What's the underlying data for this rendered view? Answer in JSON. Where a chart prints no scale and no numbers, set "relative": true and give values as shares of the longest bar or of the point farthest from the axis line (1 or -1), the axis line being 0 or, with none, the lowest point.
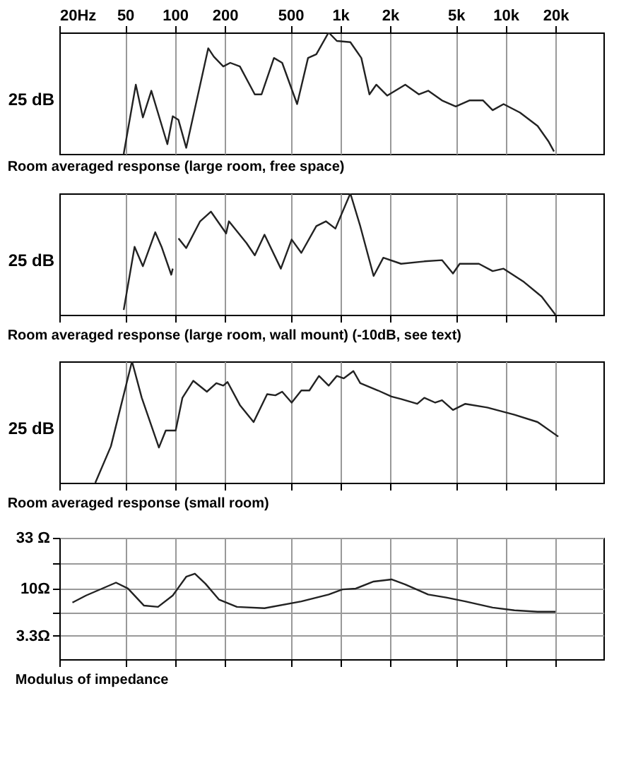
{
  "chart_data": [
    {
      "type": "line",
      "title": "Room averaged response (large room, free space)",
      "relative": true,
      "log": "x",
      "grid": "x",
      "annotations": [
        "25 dB"
      ],
      "xlim": [
        20,
        39000
      ],
      "xticks": [
        {
          "value": 20,
          "label": "20Hz"
        },
        50,
        100,
        200,
        500,
        {
          "value": 1000,
          "label": "1k"
        },
        {
          "value": 2000,
          "label": "2k"
        },
        {
          "value": 5000,
          "label": "5k"
        },
        {
          "value": 10000,
          "label": "10k"
        },
        {
          "value": 20000,
          "label": "20k"
        }
      ],
      "series": [
        {
          "color": "#222222",
          "x": [
            49,
            58,
            64,
            72,
            90,
            97,
            105,
            117,
            159,
            172,
            196,
            216,
            247,
            304,
            334,
            397,
            445,
            548,
            638,
            716,
            850,
            953,
            1150,
            1340,
            1500,
            1650,
            1920,
            2470,
            2990,
            3400,
            4120,
            4990,
            6030,
            7300,
            8340,
            9710,
            12200,
            15600,
            18200,
            19600
          ],
          "values": [
            0,
            0.57,
            0.3,
            0.52,
            0.08,
            0.31,
            0.28,
            0.05,
            0.87,
            0.8,
            0.72,
            0.75,
            0.72,
            0.49,
            0.49,
            0.79,
            0.75,
            0.41,
            0.79,
            0.82,
            1,
            0.93,
            0.92,
            0.79,
            0.49,
            0.57,
            0.48,
            0.57,
            0.49,
            0.52,
            0.44,
            0.39,
            0.44,
            0.44,
            0.36,
            0.41,
            0.34,
            0.23,
            0.1,
            0.02
          ]
        }
      ]
    },
    {
      "type": "line",
      "title": "Room averaged response (large room, wall mount) (-10dB, see text)",
      "relative": true,
      "log": "x",
      "grid": "x",
      "tick_labels": false,
      "annotations": [
        "25 dB"
      ],
      "xlim": [
        20,
        39000
      ],
      "xticks": [
        {
          "value": 20,
          "label": null
        },
        {
          "value": 50,
          "label": null
        },
        {
          "value": 100,
          "label": null
        },
        {
          "value": 200,
          "label": null
        },
        {
          "value": 500,
          "label": null
        },
        {
          "value": 1000,
          "label": null
        },
        {
          "value": 2000,
          "label": null
        },
        {
          "value": 5000,
          "label": null
        },
        {
          "value": 10000,
          "label": null
        },
        {
          "value": 20000,
          "label": null
        }
      ],
      "series": [
        {
          "color": "#222222",
          "x": [
            49,
            57,
            64,
            76,
            83,
            95,
            97,
            101,
            105,
            117,
            142,
            165,
            204,
            212,
            271,
            304,
            348,
            437,
            508,
            581,
            716,
            818,
            934,
            1150,
            1320,
            1590,
            1820,
            2330,
            3220,
            4120,
            4800,
            5270,
            6890,
            8340,
            9710,
            12900,
            16500,
            20000
          ],
          "values": [
            0.04,
            0.56,
            0.4,
            0.68,
            0.56,
            0.33,
            0.38,
            null,
            0.63,
            0.55,
            0.77,
            0.85,
            0.67,
            0.77,
            0.59,
            0.49,
            0.66,
            0.38,
            0.62,
            0.51,
            0.73,
            0.77,
            0.71,
            1,
            0.73,
            0.32,
            0.47,
            0.42,
            0.44,
            0.45,
            0.34,
            0.42,
            0.42,
            0.36,
            0.38,
            0.27,
            0.15,
            0
          ]
        }
      ]
    },
    {
      "type": "line",
      "title": "Room averaged response (small room)",
      "relative": true,
      "log": "x",
      "grid": "x",
      "tick_labels": false,
      "annotations": [
        "25 dB"
      ],
      "xlim": [
        20,
        39000
      ],
      "xticks": [
        {
          "value": 20,
          "label": null
        },
        {
          "value": 50,
          "label": null
        },
        {
          "value": 100,
          "label": null
        },
        {
          "value": 200,
          "label": null
        },
        {
          "value": 500,
          "label": null
        },
        {
          "value": 1000,
          "label": null
        },
        {
          "value": 2000,
          "label": null
        },
        {
          "value": 5000,
          "label": null
        },
        {
          "value": 10000,
          "label": null
        },
        {
          "value": 20000,
          "label": null
        }
      ],
      "series": [
        {
          "color": "#222222",
          "x": [
            33,
            41,
            55,
            63,
            80,
            88,
            101,
            111,
            129,
            156,
            178,
            196,
            208,
            247,
            299,
            361,
            405,
            445,
            508,
            581,
            650,
            743,
            850,
            953,
            1050,
            1200,
            1320,
            1690,
            2040,
            2330,
            2920,
            3220,
            3750,
            4120,
            4800,
            5700,
            7730,
            11300,
            15600,
            20800
          ],
          "values": [
            0,
            0.3,
            1,
            0.7,
            0.29,
            0.43,
            0.43,
            0.7,
            0.84,
            0.75,
            0.82,
            0.8,
            0.83,
            0.64,
            0.5,
            0.73,
            0.72,
            0.75,
            0.66,
            0.76,
            0.76,
            0.88,
            0.8,
            0.88,
            0.86,
            0.92,
            0.82,
            0.76,
            0.71,
            0.69,
            0.65,
            0.7,
            0.66,
            0.68,
            0.6,
            0.65,
            0.62,
            0.56,
            0.5,
            0.38
          ]
        }
      ]
    },
    {
      "type": "line",
      "title": "Modulus of impedance",
      "log": "xy",
      "grid": true,
      "tick_labels": "y",
      "xlim": [
        20,
        39000
      ],
      "ylim": [
        1.9,
        33
      ],
      "xticks": [
        {
          "value": 20,
          "label": null
        },
        {
          "value": 50,
          "label": null
        },
        {
          "value": 100,
          "label": null
        },
        {
          "value": 200,
          "label": null
        },
        {
          "value": 500,
          "label": null
        },
        {
          "value": 1000,
          "label": null
        },
        {
          "value": 2000,
          "label": null
        },
        {
          "value": 5000,
          "label": null
        },
        {
          "value": 10000,
          "label": null
        },
        {
          "value": 20000,
          "label": null
        }
      ],
      "yticks": [
        {
          "value": 33,
          "label": "33 Ω"
        },
        {
          "value": 18,
          "label": null
        },
        {
          "value": 10,
          "label": "10Ω"
        },
        {
          "value": 5.7,
          "label": null
        },
        {
          "value": 3.3,
          "label": "3.3Ω"
        }
      ],
      "series": [
        {
          "color": "#222222",
          "x": [
            24,
            29,
            44,
            52,
            65,
            79,
            97,
            117,
            132,
            153,
            185,
            237,
            348,
            581,
            850,
            1030,
            1240,
            1590,
            2040,
            2470,
            3400,
            4370,
            5700,
            8340,
            11300,
            15600,
            20000
          ],
          "values": [
            7.2,
            8.5,
            11.5,
            10,
            6.7,
            6.5,
            8.5,
            13.2,
            14.2,
            11.2,
            7.7,
            6.5,
            6.3,
            7.4,
            8.7,
            9.8,
            10,
            11.8,
            12.4,
            11,
            8.7,
            8.1,
            7.4,
            6.4,
            6,
            5.8,
            5.8
          ]
        }
      ]
    }
  ]
}
